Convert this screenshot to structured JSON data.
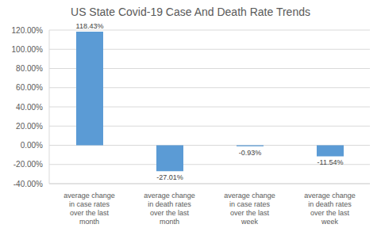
{
  "chart_data": {
    "type": "bar",
    "title": "US State Covid-19 Case And Death Rate Trends",
    "categories": [
      "average change in case rates over the last month",
      "average change in death rates over the last month",
      "average change in case rates over the last week",
      "average change in death rates over the last week"
    ],
    "values": [
      118.43,
      -27.01,
      -0.93,
      -11.54
    ],
    "value_labels": [
      "118.43%",
      "-27.01%",
      "-0.93%",
      "-11.54%"
    ],
    "color": "#5b9bd5",
    "ylim": [
      -40,
      120
    ],
    "yticks": [
      {
        "value": -40,
        "label": "-40.00%"
      },
      {
        "value": -20,
        "label": "-20.00%"
      },
      {
        "value": 0,
        "label": "0.00%"
      },
      {
        "value": 20,
        "label": "20.00%"
      },
      {
        "value": 40,
        "label": "40.00%"
      },
      {
        "value": 60,
        "label": "60.00%"
      },
      {
        "value": 80,
        "label": "80.00%"
      },
      {
        "value": 100,
        "label": "100.00%"
      },
      {
        "value": 120,
        "label": "120.00%"
      }
    ],
    "grid": true,
    "data_labels": true
  }
}
